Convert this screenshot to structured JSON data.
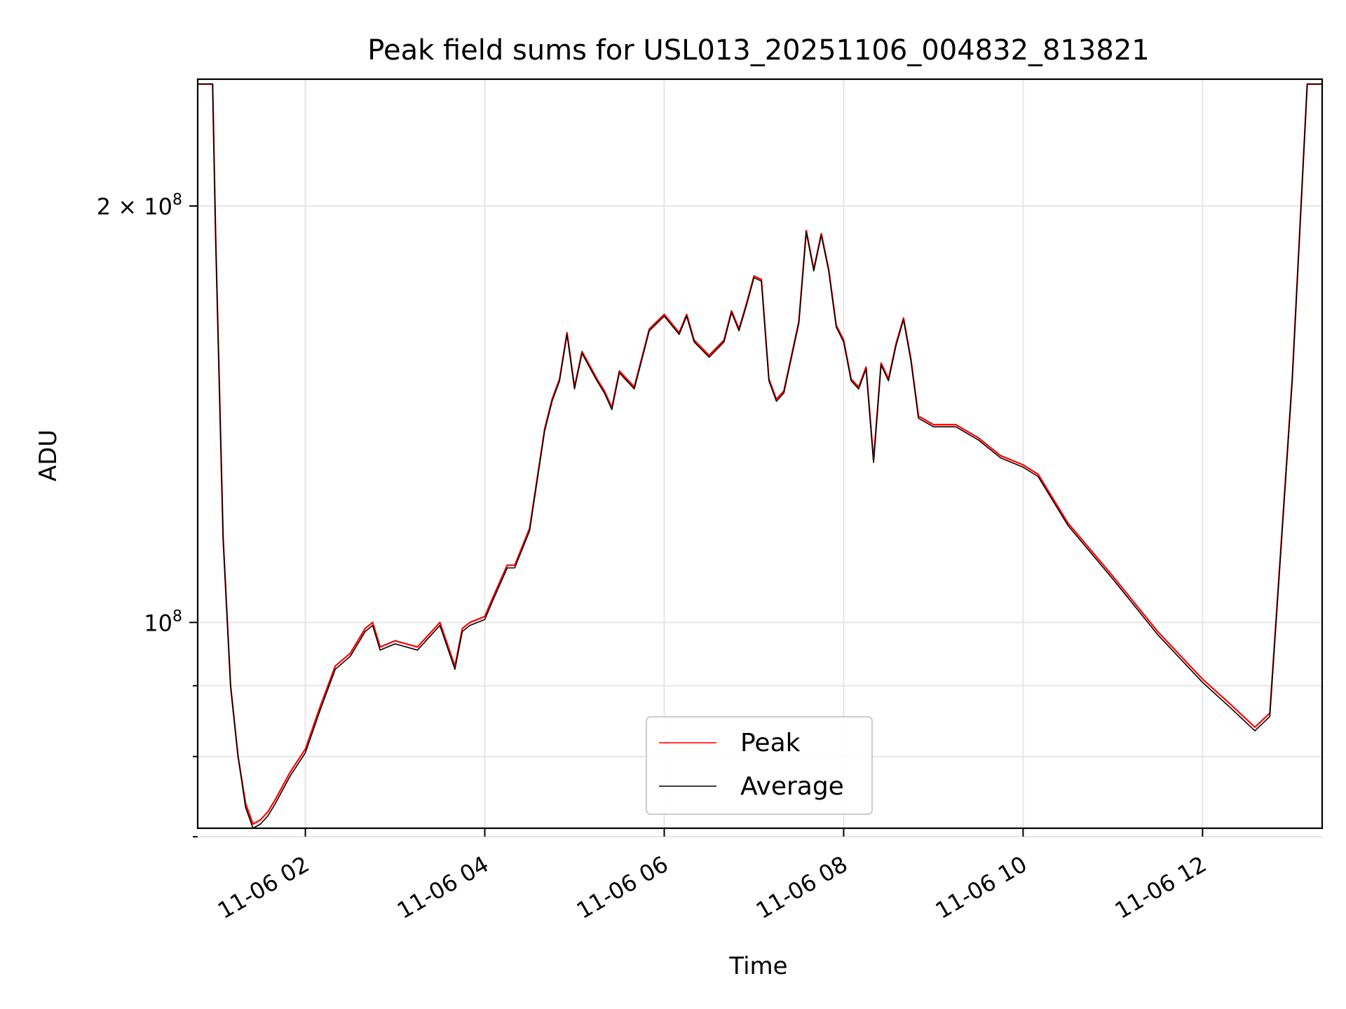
{
  "chart_data": {
    "type": "line",
    "title": "Peak field sums for USL013_20251106_004832_813821",
    "xlabel": "Time",
    "ylabel": "ADU",
    "yscale": "log",
    "grid": true,
    "legend_position": "lower center",
    "xlim": [
      "2025-11-06 00:48",
      "2025-11-06 13:20"
    ],
    "ylim": [
      71000000,
      247000000
    ],
    "x_ticks": [
      "11-06 02",
      "11-06 04",
      "11-06 06",
      "11-06 08",
      "11-06 10",
      "11-06 12"
    ],
    "x_tick_times": [
      "2025-11-06 02:00",
      "2025-11-06 04:00",
      "2025-11-06 06:00",
      "2025-11-06 08:00",
      "2025-11-06 10:00",
      "2025-11-06 12:00"
    ],
    "y_major_ticks": [
      {
        "value": 100000000,
        "base": "10",
        "exp": "8",
        "coef": ""
      },
      {
        "value": 200000000,
        "base": "10",
        "exp": "8",
        "coef": "2 × "
      }
    ],
    "y_minor_ticks": [
      70000000,
      80000000,
      90000000
    ],
    "x": [
      "2025-11-06 00:48",
      "2025-11-06 00:58",
      "2025-11-06 01:00",
      "2025-11-06 01:05",
      "2025-11-06 01:10",
      "2025-11-06 01:15",
      "2025-11-06 01:20",
      "2025-11-06 01:25",
      "2025-11-06 01:30",
      "2025-11-06 01:35",
      "2025-11-06 01:40",
      "2025-11-06 01:50",
      "2025-11-06 02:00",
      "2025-11-06 02:10",
      "2025-11-06 02:20",
      "2025-11-06 02:30",
      "2025-11-06 02:40",
      "2025-11-06 02:45",
      "2025-11-06 02:50",
      "2025-11-06 03:00",
      "2025-11-06 03:15",
      "2025-11-06 03:30",
      "2025-11-06 03:40",
      "2025-11-06 03:45",
      "2025-11-06 03:50",
      "2025-11-06 04:00",
      "2025-11-06 04:05",
      "2025-11-06 04:15",
      "2025-11-06 04:20",
      "2025-11-06 04:30",
      "2025-11-06 04:40",
      "2025-11-06 04:45",
      "2025-11-06 04:50",
      "2025-11-06 04:55",
      "2025-11-06 05:00",
      "2025-11-06 05:05",
      "2025-11-06 05:15",
      "2025-11-06 05:20",
      "2025-11-06 05:25",
      "2025-11-06 05:30",
      "2025-11-06 05:40",
      "2025-11-06 05:50",
      "2025-11-06 06:00",
      "2025-11-06 06:10",
      "2025-11-06 06:15",
      "2025-11-06 06:20",
      "2025-11-06 06:30",
      "2025-11-06 06:40",
      "2025-11-06 06:45",
      "2025-11-06 06:50",
      "2025-11-06 06:55",
      "2025-11-06 07:00",
      "2025-11-06 07:05",
      "2025-11-06 07:10",
      "2025-11-06 07:15",
      "2025-11-06 07:20",
      "2025-11-06 07:30",
      "2025-11-06 07:35",
      "2025-11-06 07:40",
      "2025-11-06 07:45",
      "2025-11-06 07:50",
      "2025-11-06 07:55",
      "2025-11-06 08:00",
      "2025-11-06 08:05",
      "2025-11-06 08:10",
      "2025-11-06 08:15",
      "2025-11-06 08:20",
      "2025-11-06 08:25",
      "2025-11-06 08:30",
      "2025-11-06 08:35",
      "2025-11-06 08:40",
      "2025-11-06 08:45",
      "2025-11-06 08:50",
      "2025-11-06 09:00",
      "2025-11-06 09:15",
      "2025-11-06 09:30",
      "2025-11-06 09:45",
      "2025-11-06 10:00",
      "2025-11-06 10:10",
      "2025-11-06 10:30",
      "2025-11-06 11:00",
      "2025-11-06 11:30",
      "2025-11-06 12:00",
      "2025-11-06 12:20",
      "2025-11-06 12:35",
      "2025-11-06 12:45",
      "2025-11-06 13:00",
      "2025-11-06 13:10",
      "2025-11-06 13:20"
    ],
    "series": [
      {
        "name": "Peak",
        "color": "#ff0000",
        "values": [
          245000000,
          245000000,
          190000000,
          115000000,
          90000000,
          80000000,
          74000000,
          71500000,
          72000000,
          73000000,
          74500000,
          78000000,
          81000000,
          87000000,
          93000000,
          95000000,
          99000000,
          100000000,
          96000000,
          97000000,
          96000000,
          100000000,
          93000000,
          99000000,
          100000000,
          101000000,
          104000000,
          110000000,
          110000000,
          117000000,
          138000000,
          145000000,
          150000000,
          162000000,
          148000000,
          157000000,
          150000000,
          147000000,
          143000000,
          152000000,
          148000000,
          163000000,
          167000000,
          162000000,
          167000000,
          160000000,
          156000000,
          160000000,
          168000000,
          163000000,
          170000000,
          178000000,
          177000000,
          150000000,
          145000000,
          147000000,
          165000000,
          192000000,
          180000000,
          191000000,
          180000000,
          164000000,
          160000000,
          150000000,
          148000000,
          153000000,
          131000000,
          154000000,
          150000000,
          159000000,
          166000000,
          155000000,
          141000000,
          139000000,
          139000000,
          136000000,
          132000000,
          130000000,
          128000000,
          118000000,
          108000000,
          98500000,
          91000000,
          87000000,
          84000000,
          86000000,
          150000000,
          245000000,
          245000000
        ]
      },
      {
        "name": "Average",
        "color": "#000000",
        "values": [
          245000000,
          245000000,
          190000000,
          115000000,
          90000000,
          80000000,
          73500000,
          71000000,
          71500000,
          72500000,
          74000000,
          77500000,
          80500000,
          86500000,
          92500000,
          94500000,
          98500000,
          99500000,
          95500000,
          96500000,
          95500000,
          99500000,
          92500000,
          98500000,
          99500000,
          100500000,
          103500000,
          109500000,
          109500000,
          116500000,
          137500000,
          144500000,
          149500000,
          161500000,
          147500000,
          156500000,
          149500000,
          146500000,
          142500000,
          151500000,
          147500000,
          162500000,
          166500000,
          161500000,
          166500000,
          159500000,
          155500000,
          159500000,
          167500000,
          162500000,
          169500000,
          177500000,
          176500000,
          149500000,
          144500000,
          146500000,
          164500000,
          191500000,
          179500000,
          190500000,
          179500000,
          163500000,
          159500000,
          149500000,
          147500000,
          152500000,
          130500000,
          153500000,
          149500000,
          158500000,
          165500000,
          154500000,
          140500000,
          138500000,
          138500000,
          135500000,
          131500000,
          129500000,
          127500000,
          117500000,
          107500000,
          98000000,
          90500000,
          86500000,
          83500000,
          85500000,
          149500000,
          245000000,
          245000000
        ]
      }
    ]
  }
}
